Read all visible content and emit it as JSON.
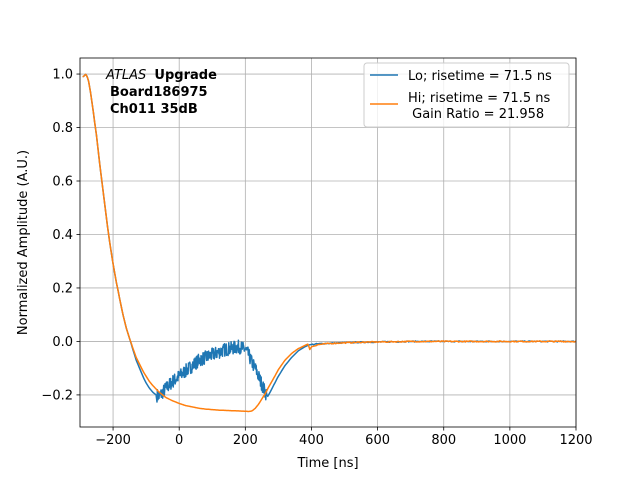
{
  "chart_data": {
    "type": "line",
    "xlabel": "Time [ns]",
    "ylabel": "Normalized Amplitude (A.U.)",
    "xlim": [
      -300,
      1200
    ],
    "ylim": [
      -0.32,
      1.06
    ],
    "x_ticks": [
      -200,
      0,
      200,
      400,
      600,
      800,
      1000,
      1200
    ],
    "x_tick_labels": [
      "−200",
      "0",
      "200",
      "400",
      "600",
      "800",
      "1000",
      "1200"
    ],
    "y_ticks": [
      -0.2,
      0.0,
      0.2,
      0.4,
      0.6,
      0.8,
      1.0
    ],
    "y_tick_labels": [
      "−0.2",
      "0.0",
      "0.2",
      "0.4",
      "0.6",
      "0.8",
      "1.0"
    ],
    "grid": true,
    "legend_position": "top-right",
    "annotation": {
      "line1_italic": "ATLAS",
      "line1_bold": "Upgrade",
      "line2": "Board186975",
      "line3": "Ch011 35dB"
    },
    "series": [
      {
        "name": "Lo; risetime = 71.5 ns",
        "legend_lines": [
          "Lo; risetime = 71.5 ns"
        ],
        "color": "#1f77b4",
        "noisy_range": [
          -70,
          265
        ],
        "noise_amplitude": 0.025,
        "points": [
          [
            -290,
            0.99
          ],
          [
            -282,
            1.0
          ],
          [
            -275,
            0.98
          ],
          [
            -268,
            0.93
          ],
          [
            -260,
            0.86
          ],
          [
            -250,
            0.77
          ],
          [
            -240,
            0.66
          ],
          [
            -230,
            0.56
          ],
          [
            -220,
            0.46
          ],
          [
            -210,
            0.37
          ],
          [
            -200,
            0.29
          ],
          [
            -190,
            0.22
          ],
          [
            -180,
            0.16
          ],
          [
            -170,
            0.1
          ],
          [
            -160,
            0.05
          ],
          [
            -150,
            0.01
          ],
          [
            -140,
            -0.03
          ],
          [
            -130,
            -0.07
          ],
          [
            -120,
            -0.1
          ],
          [
            -110,
            -0.13
          ],
          [
            -100,
            -0.155
          ],
          [
            -90,
            -0.175
          ],
          [
            -80,
            -0.19
          ],
          [
            -70,
            -0.2
          ],
          [
            -60,
            -0.205
          ],
          [
            -50,
            -0.19
          ],
          [
            -40,
            -0.175
          ],
          [
            -20,
            -0.15
          ],
          [
            0,
            -0.13
          ],
          [
            20,
            -0.11
          ],
          [
            40,
            -0.09
          ],
          [
            60,
            -0.07
          ],
          [
            80,
            -0.06
          ],
          [
            100,
            -0.05
          ],
          [
            120,
            -0.04
          ],
          [
            140,
            -0.03
          ],
          [
            160,
            -0.025
          ],
          [
            180,
            -0.02
          ],
          [
            200,
            -0.03
          ],
          [
            210,
            -0.05
          ],
          [
            220,
            -0.08
          ],
          [
            230,
            -0.1
          ],
          [
            240,
            -0.13
          ],
          [
            250,
            -0.16
          ],
          [
            260,
            -0.19
          ],
          [
            268,
            -0.205
          ],
          [
            275,
            -0.19
          ],
          [
            285,
            -0.165
          ],
          [
            300,
            -0.13
          ],
          [
            320,
            -0.09
          ],
          [
            340,
            -0.06
          ],
          [
            360,
            -0.035
          ],
          [
            380,
            -0.02
          ],
          [
            395,
            -0.012
          ],
          [
            420,
            -0.009
          ],
          [
            450,
            -0.007
          ],
          [
            500,
            -0.005
          ],
          [
            550,
            -0.003
          ],
          [
            600,
            -0.002
          ],
          [
            700,
            0.0
          ],
          [
            800,
            0.0
          ],
          [
            900,
            0.0
          ],
          [
            1000,
            0.0
          ],
          [
            1100,
            0.0
          ],
          [
            1200,
            0.0
          ]
        ]
      },
      {
        "name": "Hi; risetime = 71.5 ns\n Gain Ratio = 21.958",
        "legend_lines": [
          "Hi; risetime = 71.5 ns",
          " Gain Ratio = 21.958"
        ],
        "color": "#ff7f0e",
        "points": [
          [
            -290,
            0.99
          ],
          [
            -282,
            1.0
          ],
          [
            -275,
            0.98
          ],
          [
            -268,
            0.93
          ],
          [
            -260,
            0.86
          ],
          [
            -250,
            0.77
          ],
          [
            -240,
            0.66
          ],
          [
            -230,
            0.56
          ],
          [
            -220,
            0.46
          ],
          [
            -210,
            0.37
          ],
          [
            -200,
            0.29
          ],
          [
            -190,
            0.22
          ],
          [
            -180,
            0.16
          ],
          [
            -170,
            0.1
          ],
          [
            -160,
            0.05
          ],
          [
            -150,
            0.01
          ],
          [
            -140,
            -0.025
          ],
          [
            -130,
            -0.06
          ],
          [
            -120,
            -0.085
          ],
          [
            -110,
            -0.11
          ],
          [
            -100,
            -0.13
          ],
          [
            -90,
            -0.15
          ],
          [
            -80,
            -0.165
          ],
          [
            -70,
            -0.178
          ],
          [
            -60,
            -0.19
          ],
          [
            -50,
            -0.2
          ],
          [
            -40,
            -0.21
          ],
          [
            -20,
            -0.222
          ],
          [
            0,
            -0.232
          ],
          [
            20,
            -0.24
          ],
          [
            40,
            -0.245
          ],
          [
            60,
            -0.25
          ],
          [
            80,
            -0.253
          ],
          [
            100,
            -0.255
          ],
          [
            120,
            -0.257
          ],
          [
            140,
            -0.258
          ],
          [
            160,
            -0.259
          ],
          [
            180,
            -0.26
          ],
          [
            200,
            -0.261
          ],
          [
            210,
            -0.262
          ],
          [
            220,
            -0.26
          ],
          [
            230,
            -0.25
          ],
          [
            240,
            -0.235
          ],
          [
            250,
            -0.215
          ],
          [
            260,
            -0.195
          ],
          [
            270,
            -0.172
          ],
          [
            280,
            -0.15
          ],
          [
            290,
            -0.128
          ],
          [
            300,
            -0.105
          ],
          [
            320,
            -0.07
          ],
          [
            340,
            -0.045
          ],
          [
            360,
            -0.027
          ],
          [
            380,
            -0.015
          ],
          [
            390,
            -0.01
          ],
          [
            395,
            -0.03
          ],
          [
            400,
            -0.02
          ],
          [
            420,
            -0.012
          ],
          [
            450,
            -0.008
          ],
          [
            500,
            -0.005
          ],
          [
            550,
            -0.003
          ],
          [
            600,
            -0.002
          ],
          [
            700,
            0.0
          ],
          [
            800,
            0.0
          ],
          [
            900,
            0.0
          ],
          [
            1000,
            0.0
          ],
          [
            1100,
            0.0
          ],
          [
            1200,
            0.0
          ]
        ]
      }
    ]
  }
}
